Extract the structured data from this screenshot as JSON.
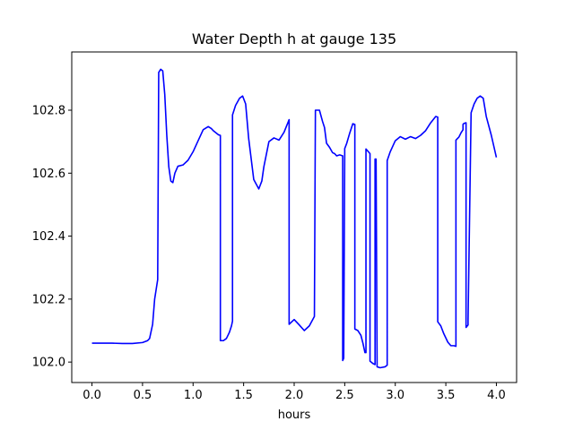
{
  "chart_data": {
    "type": "line",
    "title": "Water Depth h at gauge 135",
    "xlabel": "hours",
    "ylabel": "",
    "xlim": [
      -0.2,
      4.2
    ],
    "ylim": [
      101.935,
      102.985
    ],
    "xticks": [
      0.0,
      0.5,
      1.0,
      1.5,
      2.0,
      2.5,
      3.0,
      3.5,
      4.0
    ],
    "xtick_labels": [
      "0.0",
      "0.5",
      "1.0",
      "1.5",
      "2.0",
      "2.5",
      "3.0",
      "3.5",
      "4.0"
    ],
    "yticks": [
      102.0,
      102.2,
      102.4,
      102.6,
      102.8
    ],
    "ytick_labels": [
      "102.0",
      "102.2",
      "102.4",
      "102.6",
      "102.8"
    ],
    "grid": false,
    "legend": "none",
    "series": [
      {
        "color": "#0000ff",
        "x": [
          0.0,
          0.2,
          0.3,
          0.4,
          0.5,
          0.55,
          0.57,
          0.6,
          0.62,
          0.65,
          0.66,
          0.66,
          0.68,
          0.7,
          0.72,
          0.74,
          0.76,
          0.78,
          0.8,
          0.82,
          0.85,
          0.9,
          0.95,
          1.0,
          1.05,
          1.1,
          1.15,
          1.18,
          1.2,
          1.25,
          1.27,
          1.27,
          1.3,
          1.33,
          1.36,
          1.38,
          1.39,
          1.39,
          1.42,
          1.46,
          1.49,
          1.52,
          1.55,
          1.6,
          1.65,
          1.68,
          1.7,
          1.75,
          1.8,
          1.85,
          1.9,
          1.95,
          1.95,
          2.0,
          2.05,
          2.1,
          2.15,
          2.2,
          2.21,
          2.25,
          2.28,
          2.3,
          2.32,
          2.35,
          2.38,
          2.4,
          2.42,
          2.45,
          2.48,
          2.48,
          2.49,
          2.5,
          2.5,
          2.52,
          2.55,
          2.58,
          2.6,
          2.6,
          2.63,
          2.66,
          2.68,
          2.7,
          2.71,
          2.71,
          2.75,
          2.75,
          2.78,
          2.8,
          2.8,
          2.81,
          2.82,
          2.82,
          2.85,
          2.9,
          2.92,
          2.92,
          2.95,
          3.0,
          3.05,
          3.1,
          3.15,
          3.2,
          3.25,
          3.3,
          3.35,
          3.4,
          3.42,
          3.42,
          3.45,
          3.48,
          3.52,
          3.55,
          3.58,
          3.6,
          3.6,
          3.63,
          3.65,
          3.67,
          3.67,
          3.68,
          3.7,
          3.7,
          3.72,
          3.72,
          3.75,
          3.78,
          3.81,
          3.84,
          3.87,
          3.9,
          3.95,
          4.0
        ],
        "y": [
          102.06,
          102.06,
          102.059,
          102.059,
          102.062,
          102.068,
          102.075,
          102.12,
          102.2,
          102.262,
          102.915,
          102.92,
          102.93,
          102.925,
          102.85,
          102.72,
          102.62,
          102.575,
          102.57,
          102.6,
          102.622,
          102.626,
          102.641,
          102.668,
          102.703,
          102.738,
          102.748,
          102.742,
          102.735,
          102.722,
          102.72,
          102.068,
          102.068,
          102.075,
          102.095,
          102.115,
          102.13,
          102.785,
          102.815,
          102.838,
          102.845,
          102.82,
          102.71,
          102.58,
          102.55,
          102.575,
          102.62,
          102.7,
          102.712,
          102.705,
          102.73,
          102.77,
          102.12,
          102.135,
          102.118,
          102.1,
          102.115,
          102.145,
          102.8,
          102.8,
          102.765,
          102.745,
          102.695,
          102.682,
          102.665,
          102.662,
          102.655,
          102.658,
          102.655,
          102.005,
          102.012,
          102.66,
          102.678,
          102.695,
          102.728,
          102.757,
          102.755,
          102.105,
          102.1,
          102.085,
          102.06,
          102.03,
          102.03,
          102.677,
          102.662,
          102.003,
          101.995,
          101.992,
          102.645,
          102.645,
          101.998,
          101.985,
          101.982,
          101.985,
          101.99,
          102.64,
          102.668,
          102.703,
          102.716,
          102.708,
          102.716,
          102.71,
          102.72,
          102.735,
          102.76,
          102.78,
          102.778,
          102.128,
          102.115,
          102.09,
          102.063,
          102.052,
          102.052,
          102.05,
          102.705,
          102.715,
          102.728,
          102.738,
          102.755,
          102.758,
          102.76,
          102.11,
          102.118,
          102.135,
          102.792,
          102.82,
          102.838,
          102.845,
          102.838,
          102.78,
          102.72,
          102.65
        ]
      }
    ]
  }
}
